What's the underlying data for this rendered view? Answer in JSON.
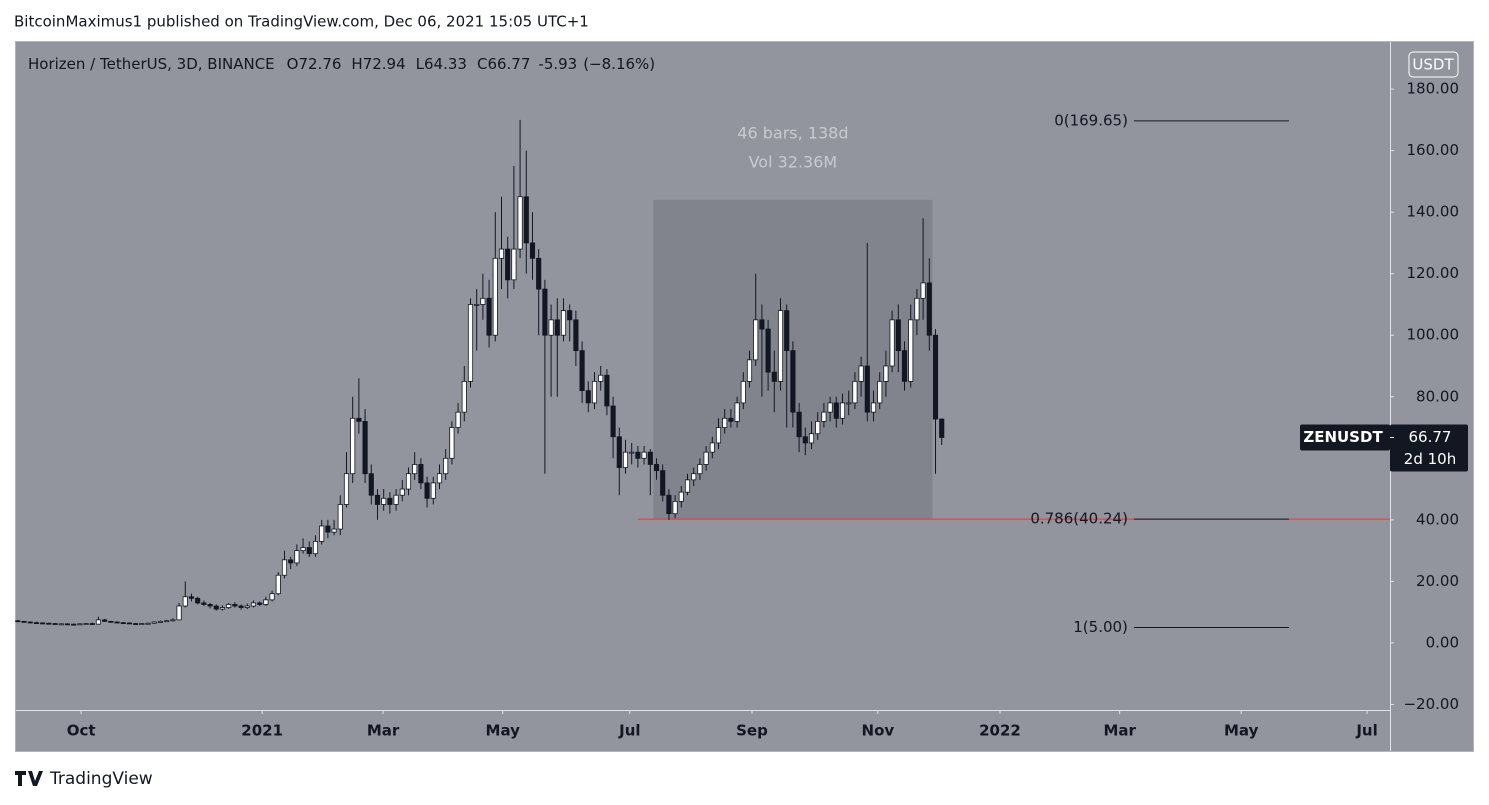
{
  "header": {
    "text": "BitcoinMaximus1 published on TradingView.com, Dec 06, 2021 15:05 UTC+1"
  },
  "footer": {
    "brand": "TradingView"
  },
  "chart_data": {
    "type": "candlestick",
    "title": "Horizen / TetherUS, 3D, BINANCE",
    "ohlc": [
      {
        "label": "O",
        "value": 72.76
      },
      {
        "label": "H",
        "value": 72.94
      },
      {
        "label": "L",
        "value": 64.33
      },
      {
        "label": "C",
        "value": 66.77
      }
    ],
    "change": -5.93,
    "change_percent_label": "(−8.16%)",
    "y_axis_label": "USDT",
    "up_color": "#ffffff",
    "down_color": "#131722",
    "background": "#93959e",
    "x": [
      0,
      1,
      2,
      3,
      4,
      5,
      6,
      7,
      8,
      9,
      10,
      11,
      12,
      13,
      14,
      15,
      16,
      17,
      18,
      19,
      20,
      21,
      22,
      23,
      24,
      25,
      26,
      27,
      28,
      29,
      30,
      31,
      32,
      33,
      34,
      35,
      36,
      37,
      38,
      39,
      40,
      41,
      42,
      43,
      44,
      45,
      46,
      47,
      48,
      49,
      50,
      51,
      52,
      53,
      54,
      55,
      56,
      57,
      58,
      59,
      60,
      61,
      62,
      63,
      64,
      65,
      66,
      67,
      68,
      69,
      70,
      71,
      72,
      73,
      74,
      75,
      76,
      77,
      78,
      79,
      80,
      81,
      82,
      83,
      84,
      85,
      86,
      87,
      88,
      89,
      90,
      91,
      92,
      93,
      94,
      95,
      96,
      97,
      98,
      99,
      100,
      101,
      102,
      103,
      104,
      105,
      106,
      107,
      108,
      109,
      110,
      111,
      112,
      113,
      114,
      115,
      116,
      117,
      118,
      119,
      120,
      121,
      122,
      123,
      124,
      125,
      126,
      127,
      128,
      129,
      130,
      131,
      132,
      133,
      134,
      135,
      136,
      137,
      138,
      139,
      140,
      141,
      142,
      143,
      144,
      145,
      146,
      147,
      148,
      149
    ],
    "open": [
      7.2,
      7,
      6.8,
      6.6,
      6.5,
      6.4,
      6.3,
      6.2,
      6.2,
      6.1,
      6.0,
      6.2,
      6.3,
      6.1,
      7.5,
      7,
      6.8,
      6.6,
      6.5,
      6.3,
      6.2,
      6.3,
      6.4,
      6.8,
      7,
      7.2,
      7.5,
      12,
      15,
      14.5,
      13,
      12.5,
      12,
      11,
      11.5,
      12.5,
      12,
      11.5,
      12,
      13,
      12.5,
      14,
      16,
      22,
      27,
      26,
      30,
      31,
      29,
      33,
      38,
      36,
      37,
      45,
      55,
      73,
      72,
      55,
      48,
      45,
      47,
      45,
      48,
      50,
      55,
      58,
      52,
      47,
      52,
      55,
      60,
      70,
      75,
      85,
      110,
      110,
      112,
      100,
      125,
      128,
      118,
      128,
      145,
      130,
      125,
      115,
      100,
      105,
      100,
      108,
      105,
      95,
      82,
      78,
      85,
      87,
      77,
      67,
      57,
      62,
      62,
      60,
      62,
      58,
      56,
      48,
      42,
      46,
      49,
      53,
      55,
      58,
      62,
      65,
      70,
      73,
      72,
      78,
      85,
      92,
      105,
      102,
      88,
      85,
      108,
      95,
      75,
      67,
      65,
      68,
      72,
      75,
      78,
      73,
      78,
      78,
      85,
      90,
      75,
      78,
      85,
      90,
      105,
      95,
      85,
      105,
      112,
      117,
      100,
      72.76
    ],
    "high": [
      7.5,
      7.2,
      7,
      6.9,
      6.7,
      6.6,
      6.5,
      6.4,
      6.4,
      6.3,
      6.4,
      6.5,
      6.6,
      8.5,
      7.8,
      7.2,
      7,
      6.8,
      6.7,
      6.5,
      6.5,
      6.6,
      7,
      7.3,
      7.5,
      8,
      13,
      20,
      16,
      15,
      13.8,
      13,
      12.5,
      12.2,
      13,
      13.2,
      12.5,
      12.8,
      13.8,
      13.5,
      15,
      17,
      23,
      30,
      28,
      32,
      34,
      33,
      35,
      40,
      40,
      40,
      48,
      62,
      80,
      86,
      76,
      58,
      50,
      50,
      49,
      50,
      53,
      57,
      62,
      60,
      54,
      54,
      58,
      63,
      72,
      78,
      90,
      112,
      115,
      120,
      118,
      140,
      145,
      132,
      155,
      170,
      160,
      140,
      128,
      118,
      110,
      112,
      112,
      110,
      108,
      98,
      85,
      88,
      90,
      89,
      80,
      70,
      66,
      65,
      64,
      64,
      63,
      60,
      58,
      50,
      48,
      51,
      55,
      57,
      60,
      64,
      67,
      73,
      76,
      76,
      80,
      88,
      95,
      120,
      110,
      105,
      95,
      112,
      110,
      98,
      78,
      70,
      72,
      75,
      78,
      80,
      80,
      81,
      82,
      88,
      93,
      130,
      82,
      88,
      95,
      108,
      110,
      98,
      110,
      115,
      138,
      125,
      102,
      72.94
    ],
    "low": [
      6.8,
      6.6,
      6.4,
      6.3,
      6.2,
      6.1,
      6,
      6,
      5.9,
      5.8,
      5.8,
      6,
      5.9,
      6,
      6.8,
      6.6,
      6.4,
      6.3,
      6.1,
      6,
      6,
      6.1,
      6.2,
      6.6,
      6.8,
      7,
      7.3,
      11.5,
      13.5,
      12.5,
      12,
      11.2,
      10.5,
      10.5,
      11,
      11.5,
      10.8,
      11,
      11.5,
      12,
      12,
      13.5,
      15.5,
      21,
      24,
      25,
      29,
      28,
      28,
      32,
      34,
      35,
      35,
      44,
      52,
      68,
      52,
      45,
      40,
      43,
      42,
      43,
      46,
      48,
      53,
      50,
      44,
      45,
      50,
      53,
      58,
      68,
      72,
      83,
      95,
      105,
      96,
      98,
      115,
      112,
      115,
      125,
      120,
      118,
      100,
      55,
      80,
      80,
      98,
      98,
      90,
      78,
      75,
      76,
      82,
      74,
      60,
      48,
      55,
      58,
      57,
      58,
      48,
      53,
      46,
      40,
      40.5,
      44,
      48,
      51,
      53,
      56,
      60,
      63,
      68,
      70,
      70,
      76,
      83,
      90,
      80,
      82,
      75,
      82,
      70,
      70,
      62,
      61,
      63,
      66,
      70,
      72,
      70,
      71,
      74,
      76,
      80,
      72,
      72,
      76,
      80,
      88,
      88,
      82,
      83,
      100,
      105,
      95,
      55,
      64.33
    ],
    "close": [
      7,
      6.8,
      6.6,
      6.5,
      6.4,
      6.3,
      6.2,
      6.2,
      6.1,
      6.0,
      6.2,
      6.3,
      6.1,
      7.5,
      7,
      6.8,
      6.6,
      6.5,
      6.3,
      6.2,
      6.3,
      6.4,
      6.8,
      7,
      7.2,
      7.5,
      12,
      15,
      14.5,
      13,
      12.5,
      12,
      11,
      11.5,
      12.5,
      12,
      11.5,
      12,
      13,
      12.5,
      14,
      16,
      22,
      27,
      26,
      30,
      31,
      29,
      33,
      38,
      36,
      37,
      45,
      55,
      73,
      72,
      55,
      48,
      45,
      47,
      45,
      48,
      50,
      55,
      58,
      52,
      47,
      52,
      55,
      60,
      70,
      75,
      85,
      110,
      110,
      112,
      100,
      125,
      128,
      118,
      128,
      145,
      130,
      125,
      115,
      100,
      105,
      100,
      108,
      105,
      95,
      82,
      78,
      85,
      87,
      77,
      67,
      57,
      62,
      62,
      60,
      62,
      58,
      56,
      48,
      42,
      46,
      49,
      53,
      55,
      58,
      62,
      65,
      70,
      73,
      72,
      78,
      85,
      92,
      105,
      102,
      88,
      85,
      108,
      95,
      75,
      67,
      65,
      68,
      72,
      75,
      78,
      73,
      78,
      78,
      85,
      90,
      75,
      78,
      85,
      90,
      105,
      95,
      85,
      105,
      112,
      117,
      100,
      72.76,
      66.77
    ],
    "xlim": [
      -0.3,
      221.3
    ],
    "xticks": [
      {
        "value": 10.2,
        "label": "Oct"
      },
      {
        "value": 39.4,
        "label": "2021"
      },
      {
        "value": 58.9,
        "label": "Mar"
      },
      {
        "value": 78.2,
        "label": "May"
      },
      {
        "value": 98.7,
        "label": "Jul"
      },
      {
        "value": 118.4,
        "label": "Sep"
      },
      {
        "value": 138.7,
        "label": "Nov"
      },
      {
        "value": 158.4,
        "label": "2022"
      },
      {
        "value": 177.7,
        "label": "Mar"
      },
      {
        "value": 197.3,
        "label": "May"
      },
      {
        "value": 217.6,
        "label": "Jul"
      }
    ],
    "ylim": [
      -21.8,
      195.3
    ],
    "yticks": [
      {
        "value": -20,
        "label": "−20.00"
      },
      {
        "value": 0,
        "label": "0.00"
      },
      {
        "value": 20,
        "label": "20.00"
      },
      {
        "value": 40,
        "label": "40.00"
      },
      {
        "value": 60,
        "label": "60.00"
      },
      {
        "value": 80,
        "label": "80.00"
      },
      {
        "value": 100,
        "label": "100.00"
      },
      {
        "value": 120,
        "label": "120.00"
      },
      {
        "value": 140,
        "label": "140.00"
      },
      {
        "value": 160,
        "label": "160.00"
      },
      {
        "value": 180,
        "label": "180.00"
      }
    ],
    "range_box": {
      "x": [
        102.5,
        147.5
      ],
      "y": [
        40.24,
        144
      ],
      "texts": [
        "46 bars, 138d",
        "Vol 32.36M"
      ],
      "color": "#7f8189"
    },
    "support_line": {
      "value": 40.24,
      "x_start": 100,
      "color": "#e53935"
    },
    "fib_x": [
      180,
      205
    ],
    "fib_levels": [
      {
        "value": 169.65,
        "label": "0(169.65)"
      },
      {
        "value": 40.24,
        "label": "0.786(40.24)"
      },
      {
        "value": 5,
        "label": "1(5.00)"
      }
    ],
    "last_price": {
      "symbol": "ZENUSDT",
      "value": 66.77,
      "countdown": "2d 10h"
    }
  }
}
